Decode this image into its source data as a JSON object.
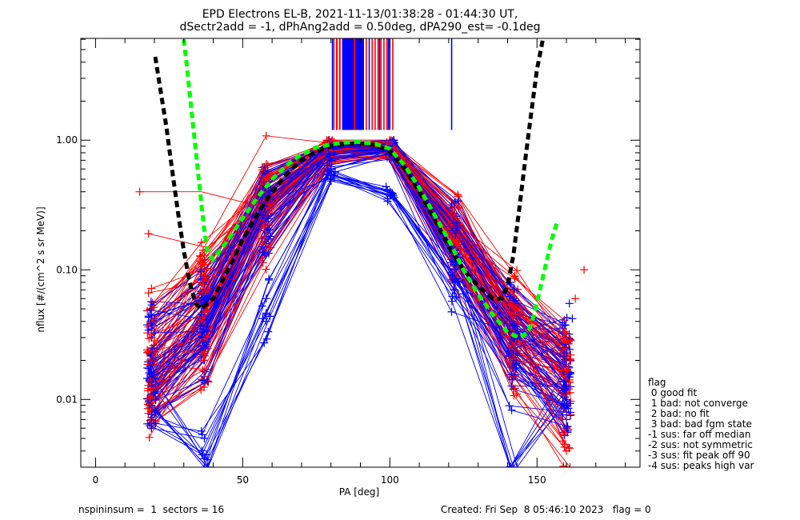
{
  "chart_data": {
    "type": "line",
    "title_line1": "EPD Electrons EL-B, 2021-11-13/01:38:28 - 01:44:30 UT,",
    "title_line2": "dSectr2add = -1, dPhAng2add = 0.50deg, dPA290_est=  -0.1deg",
    "xlabel": "PA [deg]",
    "ylabel": "nflux [#/(cm^2 s sr MeV)]",
    "xlim": [
      -5,
      185
    ],
    "ylim": [
      0.003,
      6.1
    ],
    "yscale": "log",
    "x_ticks": [
      0,
      50,
      100,
      150
    ],
    "x_tick_labels": [
      "0",
      "50",
      "100",
      "150"
    ],
    "x_minor_step": 10,
    "y_ticks": [
      0.01,
      0.1,
      1.0
    ],
    "y_tick_labels": [
      "0.01",
      "0.10",
      "1.00"
    ],
    "grid": false,
    "colors": {
      "series_a": "#ff0000",
      "series_b": "#0000ff",
      "fit_black": "#000000",
      "fit_green": "#00ff00"
    },
    "pa_bins": [
      19,
      37,
      58,
      80,
      100,
      122,
      142,
      160
    ],
    "series": [
      {
        "name": "red-profiles",
        "color": "#ff0000",
        "profiles": [
          [
            0.012,
            0.05,
            0.45,
            0.9,
            0.92,
            0.22,
            0.05,
            0.02
          ],
          [
            0.02,
            0.08,
            0.5,
            0.95,
            0.9,
            0.25,
            0.06,
            0.028
          ],
          [
            0.009,
            0.03,
            0.3,
            0.85,
            0.88,
            0.18,
            0.03,
            0.015
          ],
          [
            0.03,
            0.1,
            0.52,
            0.97,
            0.95,
            0.27,
            0.07,
            0.03
          ],
          [
            0.015,
            0.04,
            0.35,
            0.8,
            0.85,
            0.15,
            0.025,
            0.012
          ],
          [
            0.006,
            0.02,
            0.2,
            0.75,
            0.8,
            0.12,
            0.02,
            0.008
          ],
          [
            0.05,
            0.12,
            0.4,
            0.9,
            0.97,
            0.3,
            0.045,
            0.018
          ],
          [
            0.01,
            0.035,
            0.25,
            0.85,
            0.9,
            0.2,
            0.035,
            0.006
          ],
          [
            0.025,
            0.06,
            0.48,
            0.93,
            0.85,
            0.23,
            0.055,
            0.022
          ],
          [
            0.008,
            0.015,
            0.15,
            0.7,
            0.78,
            0.1,
            0.015,
            0.004
          ],
          [
            0.04,
            0.09,
            0.42,
            0.88,
            0.92,
            0.26,
            0.04,
            0.025
          ],
          [
            0.018,
            0.025,
            0.3,
            0.82,
            0.9,
            0.17,
            0.03,
            0.013
          ]
        ],
        "extras": [
          [
            15,
            0.4
          ],
          [
            18,
            0.19
          ],
          [
            58,
            1.08
          ],
          [
            166,
            0.1
          ],
          [
            163,
            0.06
          ],
          [
            160,
            0.003
          ]
        ]
      },
      {
        "name": "blue-profiles",
        "color": "#0000ff",
        "profiles": [
          [
            0.014,
            0.045,
            0.4,
            0.88,
            0.9,
            0.2,
            0.045,
            0.018
          ],
          [
            0.03,
            0.07,
            0.45,
            0.92,
            0.93,
            0.24,
            0.06,
            0.025
          ],
          [
            0.007,
            0.02,
            0.22,
            0.8,
            0.85,
            0.14,
            0.025,
            0.01
          ],
          [
            0.022,
            0.05,
            0.38,
            0.9,
            0.88,
            0.21,
            0.05,
            0.02
          ],
          [
            0.011,
            0.03,
            0.28,
            0.83,
            0.86,
            0.16,
            0.028,
            0.011
          ],
          [
            0.045,
            0.08,
            0.3,
            0.75,
            0.82,
            0.12,
            0.02,
            0.007
          ],
          [
            0.016,
            0.04,
            0.33,
            0.86,
            0.9,
            0.19,
            0.04,
            0.016
          ],
          [
            0.009,
            0.025,
            0.18,
            0.72,
            0.8,
            0.11,
            0.018,
            0.008
          ],
          [
            0.035,
            0.06,
            0.46,
            0.95,
            0.97,
            0.26,
            0.055,
            0.03
          ],
          [
            0.019,
            0.035,
            0.25,
            0.55,
            0.37,
            0.09,
            0.012,
            0.009
          ],
          [
            0.006,
            0.005,
            0.04,
            0.6,
            0.78,
            0.08,
            0.003,
            0.012
          ],
          [
            0.013,
            0.0035,
            0.06,
            0.5,
            0.4,
            0.07,
            0.025,
            0.03
          ]
        ],
        "extras": [
          [
            162,
            0.042
          ],
          [
            161,
            0.055
          ],
          [
            141,
            0.08
          ]
        ]
      }
    ],
    "top_marks": {
      "red_pa": [
        81,
        82,
        83,
        85,
        88,
        92,
        94,
        95,
        96,
        97,
        98,
        99,
        101
      ],
      "blue_pa": [
        80.5,
        84,
        86,
        87,
        89,
        90,
        91,
        93,
        96.5,
        99.5,
        100,
        121
      ],
      "ymin": 1.2
    },
    "fits": [
      {
        "name": "black-fit",
        "color": "#000000",
        "pa": [
          20.3,
          22,
          24,
          26,
          28,
          30,
          32,
          34,
          36,
          40,
          45,
          50,
          55,
          60,
          65,
          70,
          75,
          80,
          85,
          89,
          95,
          100,
          105,
          110,
          115,
          120,
          125,
          130,
          135,
          138,
          140,
          142,
          144,
          146,
          148,
          150,
          152
        ],
        "flux": [
          4.4,
          2.5,
          1.3,
          0.6,
          0.28,
          0.14,
          0.08,
          0.055,
          0.05,
          0.06,
          0.1,
          0.17,
          0.27,
          0.4,
          0.55,
          0.7,
          0.82,
          0.9,
          0.94,
          0.95,
          0.92,
          0.82,
          0.6,
          0.4,
          0.25,
          0.15,
          0.1,
          0.075,
          0.06,
          0.06,
          0.075,
          0.13,
          0.3,
          0.7,
          1.6,
          3.5,
          6.0
        ]
      },
      {
        "name": "green-fit",
        "color": "#00ff00",
        "pa": [
          30,
          31,
          32,
          33,
          34,
          35,
          36,
          37,
          38,
          40,
          45,
          50,
          55,
          60,
          65,
          70,
          75,
          80,
          85,
          89,
          95,
          100,
          105,
          110,
          115,
          120,
          125,
          130,
          135,
          140,
          144,
          147,
          149,
          151,
          153,
          155,
          157
        ],
        "flux": [
          6.0,
          3.8,
          2.3,
          1.4,
          0.85,
          0.52,
          0.32,
          0.2,
          0.14,
          0.12,
          0.17,
          0.25,
          0.36,
          0.5,
          0.64,
          0.78,
          0.88,
          0.93,
          0.96,
          0.97,
          0.94,
          0.86,
          0.64,
          0.43,
          0.27,
          0.17,
          0.1,
          0.065,
          0.045,
          0.033,
          0.03,
          0.033,
          0.045,
          0.07,
          0.11,
          0.17,
          0.24
        ]
      }
    ],
    "legend": {
      "title": "flag",
      "entries": [
        " 0 good fit",
        " 1 bad: not converge",
        " 2 bad: no fit",
        " 3 bad: bad fgm state",
        "-1 sus: far off median",
        "-2 sus: not symmetric",
        "-3 sus: fit peak off 90",
        "-4 sus: peaks high var"
      ],
      "placement": "right-bottom"
    }
  },
  "footer": {
    "left": "nspininsum =  1  sectors = 16",
    "right": "Created: Fri Sep  8 05:46:10 2023   flag = 0"
  }
}
